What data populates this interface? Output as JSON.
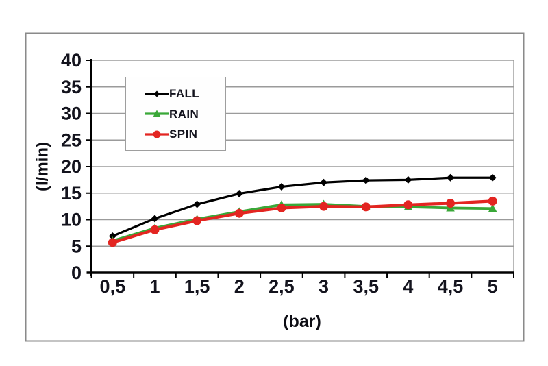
{
  "chart_data": {
    "type": "line",
    "title": "",
    "xlabel": "(bar)",
    "ylabel": "(l/min)",
    "categories": [
      "0,5",
      "1",
      "1,5",
      "2",
      "2,5",
      "3",
      "3,5",
      "4",
      "4,5",
      "5"
    ],
    "series": [
      {
        "name": "FALL",
        "color": "#000000",
        "marker": "diamond",
        "line_width": 3.2,
        "values": [
          6.9,
          10.2,
          12.9,
          14.9,
          16.2,
          17.0,
          17.4,
          17.5,
          17.9,
          17.9
        ]
      },
      {
        "name": "RAIN",
        "color": "#3aa838",
        "marker": "triangle",
        "line_width": 3.8,
        "values": [
          6.0,
          8.4,
          10.1,
          11.5,
          12.8,
          12.9,
          12.5,
          12.4,
          12.2,
          12.1
        ]
      },
      {
        "name": "SPIN",
        "color": "#e32521",
        "marker": "circle",
        "line_width": 4.2,
        "values": [
          5.7,
          8.1,
          9.8,
          11.2,
          12.2,
          12.5,
          12.4,
          12.8,
          13.1,
          13.5
        ]
      }
    ],
    "ylim": [
      0,
      40
    ],
    "yticks": [
      0,
      5,
      10,
      15,
      20,
      25,
      30,
      35,
      40
    ],
    "grid": true,
    "legend_position": "upper-left-inside"
  },
  "colors": {
    "background": "#ffffff",
    "frame_border": "#8a8a8a",
    "gridline": "#9b9b9b",
    "axis": "#000000",
    "tick_label": "#13131d",
    "axis_title": "#0d0d14",
    "legend_border": "#9e9e9e",
    "legend_background": "#fefefe"
  }
}
